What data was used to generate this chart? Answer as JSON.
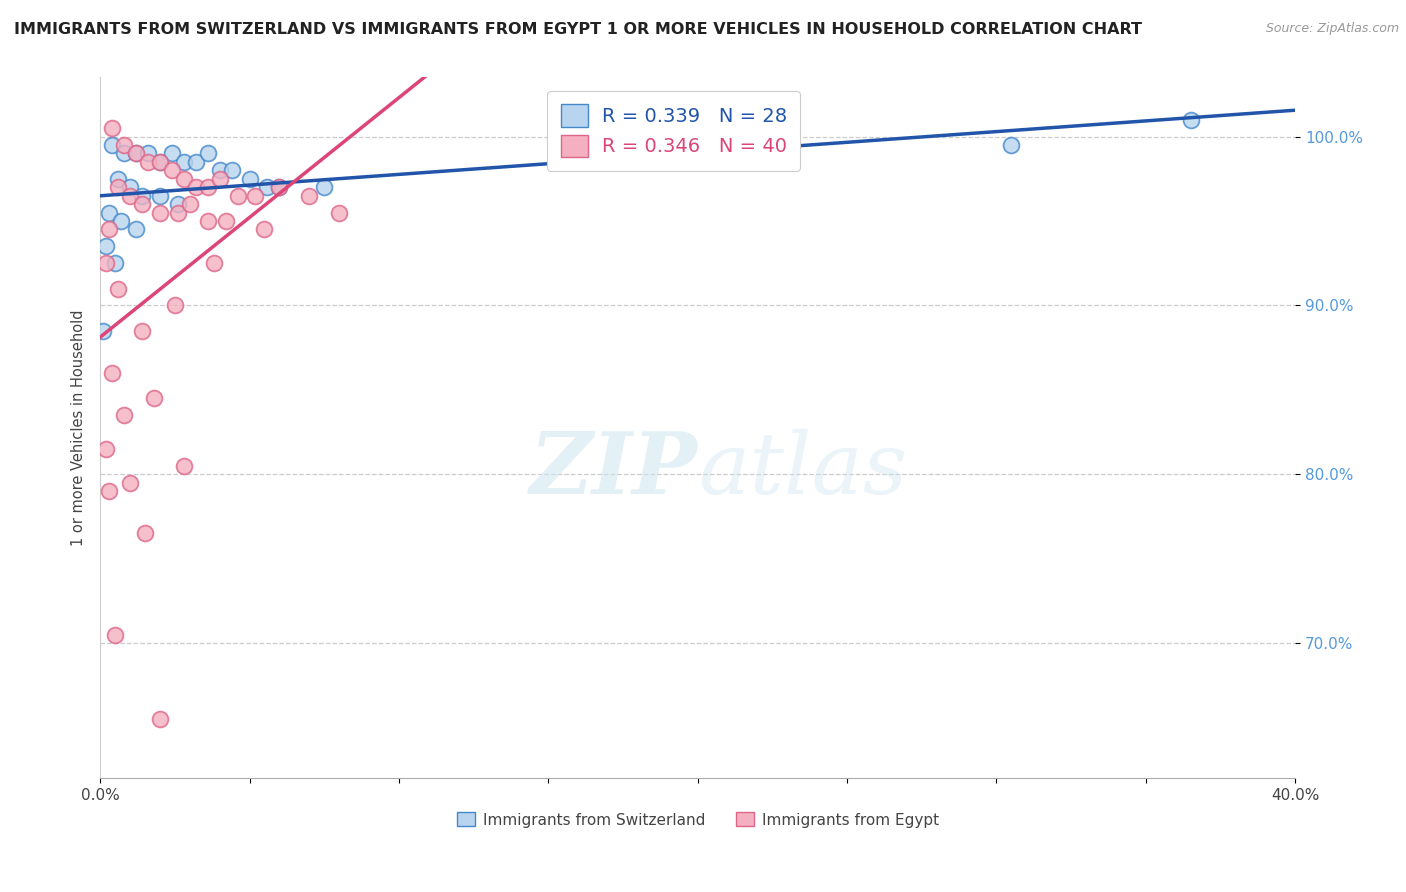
{
  "title": "IMMIGRANTS FROM SWITZERLAND VS IMMIGRANTS FROM EGYPT 1 OR MORE VEHICLES IN HOUSEHOLD CORRELATION CHART",
  "source": "Source: ZipAtlas.com",
  "ylabel": "1 or more Vehicles in Household",
  "legend_blue": "Immigrants from Switzerland",
  "legend_pink": "Immigrants from Egypt",
  "R_blue": 0.339,
  "N_blue": 28,
  "R_pink": 0.346,
  "N_pink": 40,
  "xlim": [
    0.0,
    40.0
  ],
  "ylim": [
    62.0,
    103.5
  ],
  "yticks": [
    70.0,
    80.0,
    90.0,
    100.0
  ],
  "xticks_show": [
    0.0,
    40.0
  ],
  "blue_scatter": [
    [
      0.4,
      99.5
    ],
    [
      0.8,
      99.0
    ],
    [
      1.2,
      99.0
    ],
    [
      1.6,
      99.0
    ],
    [
      2.0,
      98.5
    ],
    [
      2.4,
      99.0
    ],
    [
      2.8,
      98.5
    ],
    [
      3.2,
      98.5
    ],
    [
      3.6,
      99.0
    ],
    [
      4.0,
      98.0
    ],
    [
      4.4,
      98.0
    ],
    [
      5.0,
      97.5
    ],
    [
      5.6,
      97.0
    ],
    [
      6.0,
      97.0
    ],
    [
      0.6,
      97.5
    ],
    [
      1.0,
      97.0
    ],
    [
      1.4,
      96.5
    ],
    [
      2.0,
      96.5
    ],
    [
      2.6,
      96.0
    ],
    [
      0.3,
      95.5
    ],
    [
      0.7,
      95.0
    ],
    [
      1.2,
      94.5
    ],
    [
      0.2,
      93.5
    ],
    [
      0.5,
      92.5
    ],
    [
      0.1,
      88.5
    ],
    [
      7.5,
      97.0
    ],
    [
      30.5,
      99.5
    ],
    [
      36.5,
      101.0
    ]
  ],
  "pink_scatter": [
    [
      0.4,
      100.5
    ],
    [
      0.8,
      99.5
    ],
    [
      1.2,
      99.0
    ],
    [
      1.6,
      98.5
    ],
    [
      2.0,
      98.5
    ],
    [
      2.4,
      98.0
    ],
    [
      2.8,
      97.5
    ],
    [
      3.2,
      97.0
    ],
    [
      3.6,
      97.0
    ],
    [
      4.0,
      97.5
    ],
    [
      4.6,
      96.5
    ],
    [
      5.2,
      96.5
    ],
    [
      6.0,
      97.0
    ],
    [
      7.0,
      96.5
    ],
    [
      0.6,
      97.0
    ],
    [
      1.0,
      96.5
    ],
    [
      1.4,
      96.0
    ],
    [
      2.0,
      95.5
    ],
    [
      2.6,
      95.5
    ],
    [
      3.0,
      96.0
    ],
    [
      3.6,
      95.0
    ],
    [
      4.2,
      95.0
    ],
    [
      0.3,
      94.5
    ],
    [
      0.2,
      92.5
    ],
    [
      0.6,
      91.0
    ],
    [
      1.4,
      88.5
    ],
    [
      0.4,
      86.0
    ],
    [
      1.8,
      84.5
    ],
    [
      0.2,
      81.5
    ],
    [
      1.0,
      79.5
    ],
    [
      0.3,
      79.0
    ],
    [
      2.5,
      90.0
    ],
    [
      3.8,
      92.5
    ],
    [
      5.5,
      94.5
    ],
    [
      8.0,
      95.5
    ],
    [
      0.8,
      83.5
    ],
    [
      1.5,
      76.5
    ],
    [
      2.8,
      80.5
    ],
    [
      0.5,
      70.5
    ],
    [
      2.0,
      65.5
    ]
  ],
  "watermark_zip": "ZIP",
  "watermark_atlas": "atlas",
  "background_color": "#ffffff",
  "blue_fill": "#b8d4ee",
  "blue_edge": "#4488cc",
  "pink_fill": "#f4b0c0",
  "pink_edge": "#dd6688",
  "line_blue_color": "#2255aa",
  "line_pink_color": "#dd4477",
  "grid_color": "#cccccc",
  "ytick_color": "#5599dd",
  "title_color": "#222222",
  "source_color": "#999999"
}
